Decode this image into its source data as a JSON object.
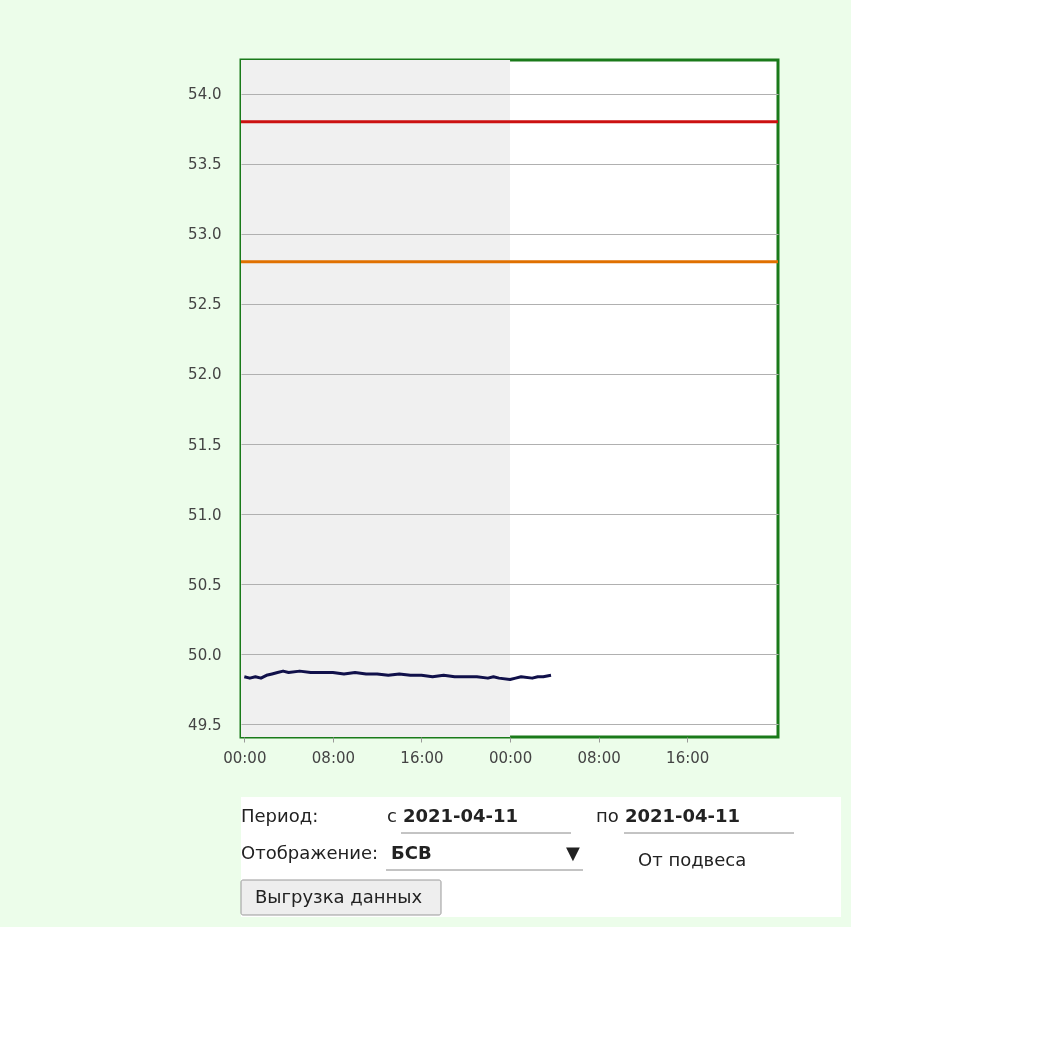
{
  "chart_data": {
    "type": "line",
    "x": [
      "2021-04-11T00:00",
      "2021-04-11T00:30",
      "2021-04-11T01:00",
      "2021-04-11T01:30",
      "2021-04-11T02:00",
      "2021-04-11T02:30",
      "2021-04-11T03:00",
      "2021-04-11T03:30",
      "2021-04-11T04:00",
      "2021-04-11T05:00",
      "2021-04-11T06:00",
      "2021-04-11T07:00",
      "2021-04-11T08:00",
      "2021-04-11T09:00",
      "2021-04-11T10:00",
      "2021-04-11T11:00",
      "2021-04-11T12:00",
      "2021-04-11T13:00",
      "2021-04-11T14:00",
      "2021-04-11T15:00",
      "2021-04-11T16:00",
      "2021-04-11T17:00",
      "2021-04-11T18:00",
      "2021-04-11T19:00",
      "2021-04-11T20:00",
      "2021-04-11T21:00",
      "2021-04-11T22:00",
      "2021-04-11T22:30",
      "2021-04-11T23:00",
      "2021-04-12T00:00",
      "2021-04-12T00:30",
      "2021-04-12T01:00",
      "2021-04-12T02:00",
      "2021-04-12T02:30",
      "2021-04-12T03:00",
      "2021-04-12T03:42"
    ],
    "series": [
      {
        "color": "#10104a",
        "values": [
          49.84,
          49.83,
          49.84,
          49.83,
          49.85,
          49.86,
          49.87,
          49.88,
          49.87,
          49.88,
          49.87,
          49.87,
          49.87,
          49.86,
          49.87,
          49.86,
          49.86,
          49.85,
          49.86,
          49.85,
          49.85,
          49.84,
          49.85,
          49.84,
          49.84,
          49.84,
          49.83,
          49.84,
          49.83,
          49.82,
          49.83,
          49.84,
          49.83,
          49.84,
          49.84,
          49.85
        ]
      }
    ],
    "xlim": [
      "2021-04-10T23:42",
      "2021-04-13T00:12"
    ],
    "xticks": [
      {
        "value": "2021-04-11T00:00",
        "label": "00:00"
      },
      {
        "value": "2021-04-11T08:00",
        "label": "08:00"
      },
      {
        "value": "2021-04-11T16:00",
        "label": "16:00"
      },
      {
        "value": "2021-04-12T00:00",
        "label": "00:00"
      },
      {
        "value": "2021-04-12T08:00",
        "label": "08:00"
      },
      {
        "value": "2021-04-12T16:00",
        "label": "16:00"
      }
    ],
    "ylim": [
      49.41,
      54.24
    ],
    "yticks": [
      {
        "value": 49.5,
        "label": "49.5"
      },
      {
        "value": 50,
        "label": "50.0"
      },
      {
        "value": 50.5,
        "label": "50.5"
      },
      {
        "value": 51,
        "label": "51.0"
      },
      {
        "value": 51.5,
        "label": "51.5"
      },
      {
        "value": 52,
        "label": "52.0"
      },
      {
        "value": 52.5,
        "label": "52.5"
      },
      {
        "value": 53,
        "label": "53.0"
      },
      {
        "value": 53.5,
        "label": "53.5"
      },
      {
        "value": 54,
        "label": "54.0"
      }
    ],
    "grid": "y",
    "ref_lines": [
      {
        "axis": "y",
        "value": 53.8,
        "color": "#cc1111"
      },
      {
        "axis": "y",
        "value": 52.8,
        "color": "#e07000"
      }
    ],
    "bands": [
      {
        "axis": "x",
        "from": "2021-04-10T23:42",
        "to": "2021-04-12T00:00",
        "color": "#f0f0f0"
      }
    ],
    "annotations": [
      "Период:",
      "с",
      "2021-04-11",
      "по",
      "2021-04-11",
      "Отображение:",
      "БСВ",
      "▼",
      "От подвеса",
      "Выгрузка данных"
    ]
  }
}
